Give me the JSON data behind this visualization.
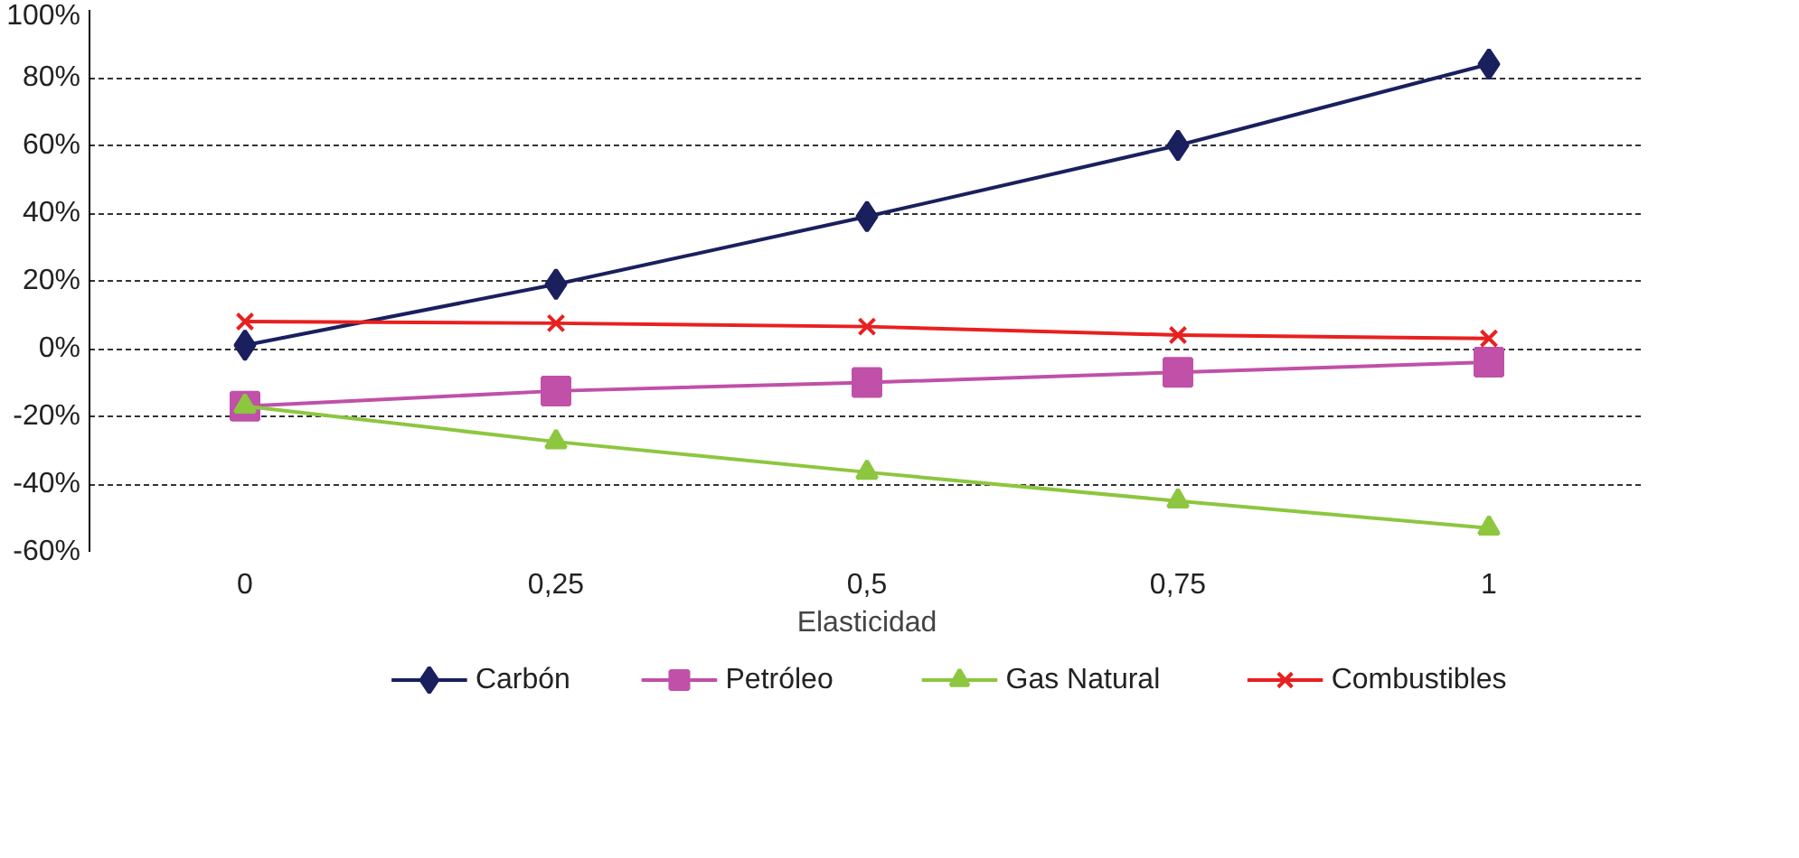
{
  "chart_data": {
    "type": "line",
    "xlabel": "Elasticidad",
    "categories": [
      "0",
      "0,25",
      "0,5",
      "0,75",
      "1"
    ],
    "ylim": [
      -60,
      100
    ],
    "yticks": [
      {
        "value": -60,
        "label": "-60%"
      },
      {
        "value": -40,
        "label": "-40%"
      },
      {
        "value": -20,
        "label": "-20%"
      },
      {
        "value": 0,
        "label": "0%"
      },
      {
        "value": 20,
        "label": "20%"
      },
      {
        "value": 40,
        "label": "40%"
      },
      {
        "value": 60,
        "label": "60%"
      },
      {
        "value": 80,
        "label": "80%"
      },
      {
        "value": 100,
        "label": "100%"
      }
    ],
    "grid": "y",
    "legend": "bottom",
    "line_style": "solid",
    "series": [
      {
        "name": "Carbón",
        "color": "#1a1f5e",
        "marker": "diamond",
        "values": [
          1,
          19,
          39,
          60,
          84
        ]
      },
      {
        "name": "Petróleo",
        "color": "#c050a8",
        "marker": "square",
        "values": [
          -17,
          -12.5,
          -10,
          -7,
          -4
        ]
      },
      {
        "name": "Gas Natural",
        "color": "#8dc63f",
        "marker": "triangle",
        "values": [
          -17,
          -27.5,
          -36.5,
          -45,
          -53
        ]
      },
      {
        "name": "Combustibles",
        "color": "#e82020",
        "marker": "cross",
        "values": [
          8,
          7.5,
          6.5,
          4,
          3
        ]
      }
    ]
  }
}
